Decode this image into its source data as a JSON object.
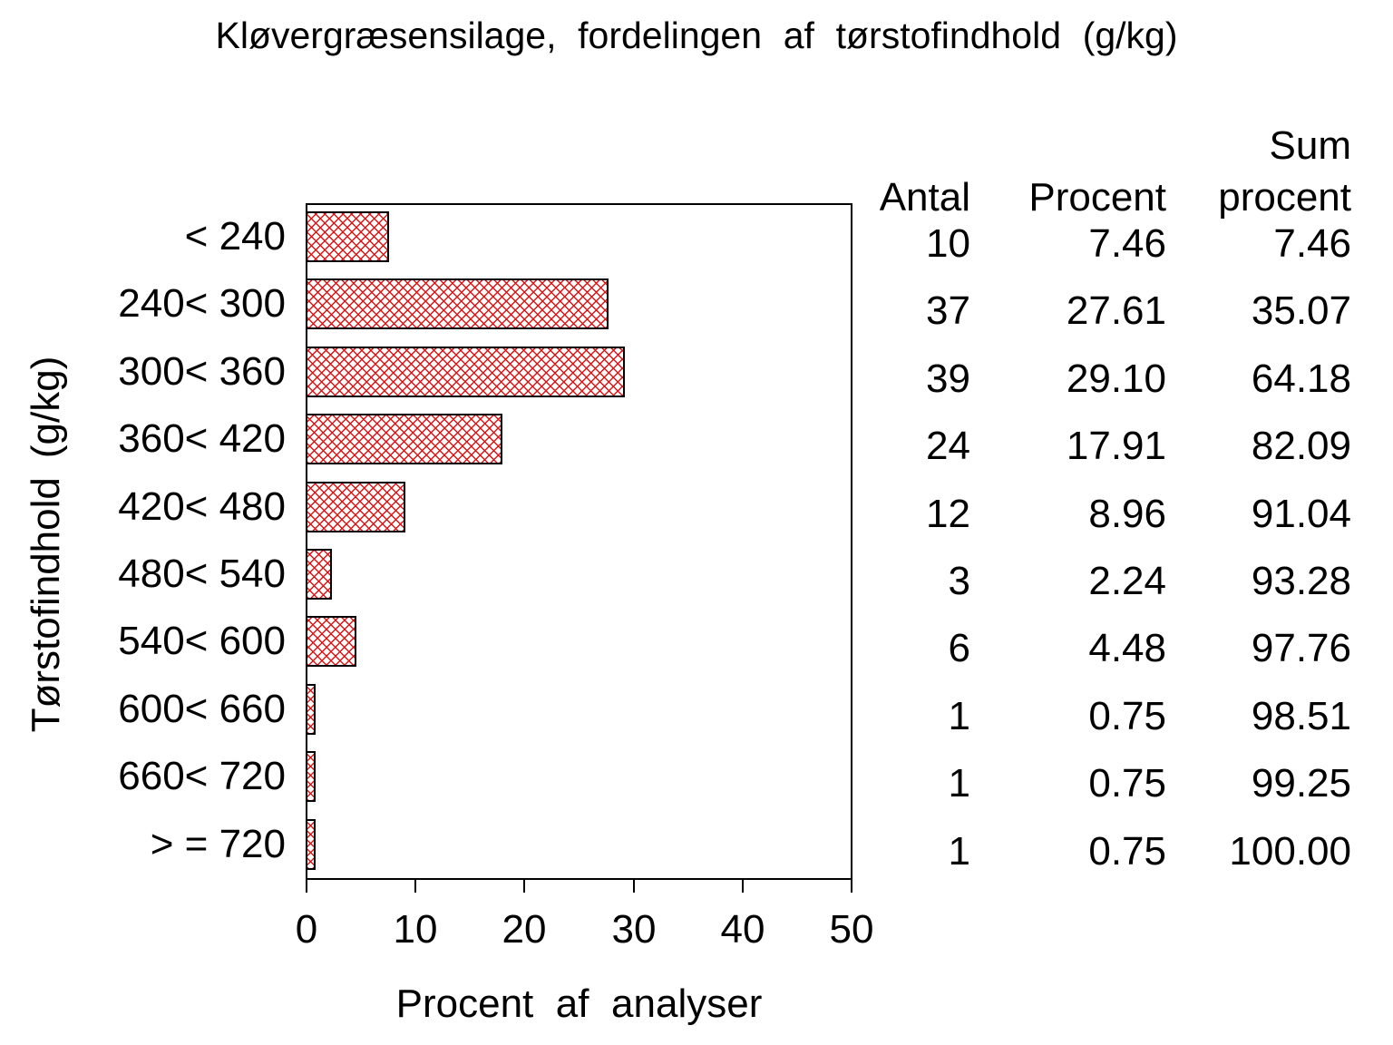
{
  "title": "Kløvergræsensilage, fordelingen af tørstofindhold (g/kg)",
  "chart_data": {
    "type": "bar",
    "orientation": "horizontal",
    "title": "Kløvergræsensilage, fordelingen af tørstofindhold (g/kg)",
    "categories": [
      "< 240",
      "240< 300",
      "300< 360",
      "360< 420",
      "420< 480",
      "480< 540",
      "540< 600",
      "600< 660",
      "660< 720",
      "> = 720"
    ],
    "values": [
      7.46,
      27.61,
      29.1,
      17.91,
      8.96,
      2.24,
      4.48,
      0.75,
      0.75,
      0.75
    ],
    "xlabel": "Procent af analyser",
    "ylabel": "Tørstofindhold (g/kg)",
    "xlim": [
      0,
      50
    ],
    "xticks": [
      "0",
      "10",
      "20",
      "30",
      "40",
      "50"
    ],
    "grid": false,
    "legend": "none",
    "bar_style": {
      "fill_pattern": "red-crosshatch",
      "hatch_color": "#e01414",
      "border_color": "#000000",
      "background": "#ffffff"
    }
  },
  "table": {
    "headers": {
      "antal": "Antal",
      "procent": "Procent",
      "sum_line1": "Sum",
      "sum_line2": "procent"
    },
    "rows": [
      {
        "antal": "10",
        "procent": "7.46",
        "sum": "7.46"
      },
      {
        "antal": "37",
        "procent": "27.61",
        "sum": "35.07"
      },
      {
        "antal": "39",
        "procent": "29.10",
        "sum": "64.18"
      },
      {
        "antal": "24",
        "procent": "17.91",
        "sum": "82.09"
      },
      {
        "antal": "12",
        "procent": "8.96",
        "sum": "91.04"
      },
      {
        "antal": "3",
        "procent": "2.24",
        "sum": "93.28"
      },
      {
        "antal": "6",
        "procent": "4.48",
        "sum": "97.76"
      },
      {
        "antal": "1",
        "procent": "0.75",
        "sum": "98.51"
      },
      {
        "antal": "1",
        "procent": "0.75",
        "sum": "99.25"
      },
      {
        "antal": "1",
        "procent": "0.75",
        "sum": "100.00"
      }
    ]
  }
}
